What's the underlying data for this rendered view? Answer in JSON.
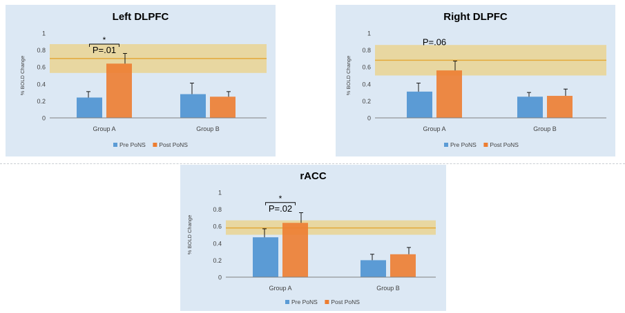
{
  "colors": {
    "pre": "#5b9bd5",
    "post": "#ed7d31",
    "band": "#f3c95c",
    "band_line": "#e3a93a",
    "panel_bg": "#dce8f4",
    "axis": "#7f7f7f",
    "text": "#404040"
  },
  "chart_data": [
    {
      "type": "bar",
      "title": "Left DLPFC",
      "ylabel": "% BOLD Change",
      "ylim": [
        0,
        1
      ],
      "yticks": [
        "0",
        "0.2",
        "0.4",
        "0.6",
        "0.8",
        "1"
      ],
      "categories": [
        "Group A",
        "Group B"
      ],
      "series": [
        {
          "name": "Pre PoNS",
          "values": [
            0.24,
            0.28
          ],
          "errors": [
            0.07,
            0.13
          ]
        },
        {
          "name": "Post PoNS",
          "values": [
            0.64,
            0.25
          ],
          "errors": [
            0.12,
            0.06
          ]
        }
      ],
      "band": {
        "low": 0.53,
        "high": 0.87,
        "line": 0.7
      },
      "annotation": {
        "text": "P=.01",
        "star": "*",
        "value": 0.87
      },
      "legend": "bottom",
      "grid": false
    },
    {
      "type": "bar",
      "title": "Right DLPFC",
      "ylabel": "% BOLD Change",
      "ylim": [
        0,
        1
      ],
      "yticks": [
        "0",
        "0.2",
        "0.4",
        "0.6",
        "0.8",
        "1"
      ],
      "categories": [
        "Group A",
        "Group B"
      ],
      "series": [
        {
          "name": "Pre PoNS",
          "values": [
            0.31,
            0.25
          ],
          "errors": [
            0.1,
            0.05
          ]
        },
        {
          "name": "Post PoNS",
          "values": [
            0.56,
            0.26
          ],
          "errors": [
            0.11,
            0.08
          ]
        }
      ],
      "band": {
        "low": 0.5,
        "high": 0.86,
        "line": 0.68
      },
      "annotation": {
        "text": "P=.06",
        "star": "",
        "value": 0.9
      },
      "legend": "bottom",
      "grid": false
    },
    {
      "type": "bar",
      "title": "rACC",
      "ylabel": "% BOLD Change",
      "ylim": [
        0,
        1
      ],
      "yticks": [
        "0",
        "0.2",
        "0.4",
        "0.6",
        "0.8",
        "1"
      ],
      "categories": [
        "Group A",
        "Group B"
      ],
      "series": [
        {
          "name": "Pre PoNS",
          "values": [
            0.47,
            0.2
          ],
          "errors": [
            0.1,
            0.07
          ]
        },
        {
          "name": "Post PoNS",
          "values": [
            0.64,
            0.27
          ],
          "errors": [
            0.12,
            0.08
          ]
        }
      ],
      "band": {
        "low": 0.5,
        "high": 0.67,
        "line": 0.58
      },
      "annotation": {
        "text": "P=.02",
        "star": "*",
        "value": 0.88
      },
      "legend": "bottom",
      "grid": false
    }
  ]
}
